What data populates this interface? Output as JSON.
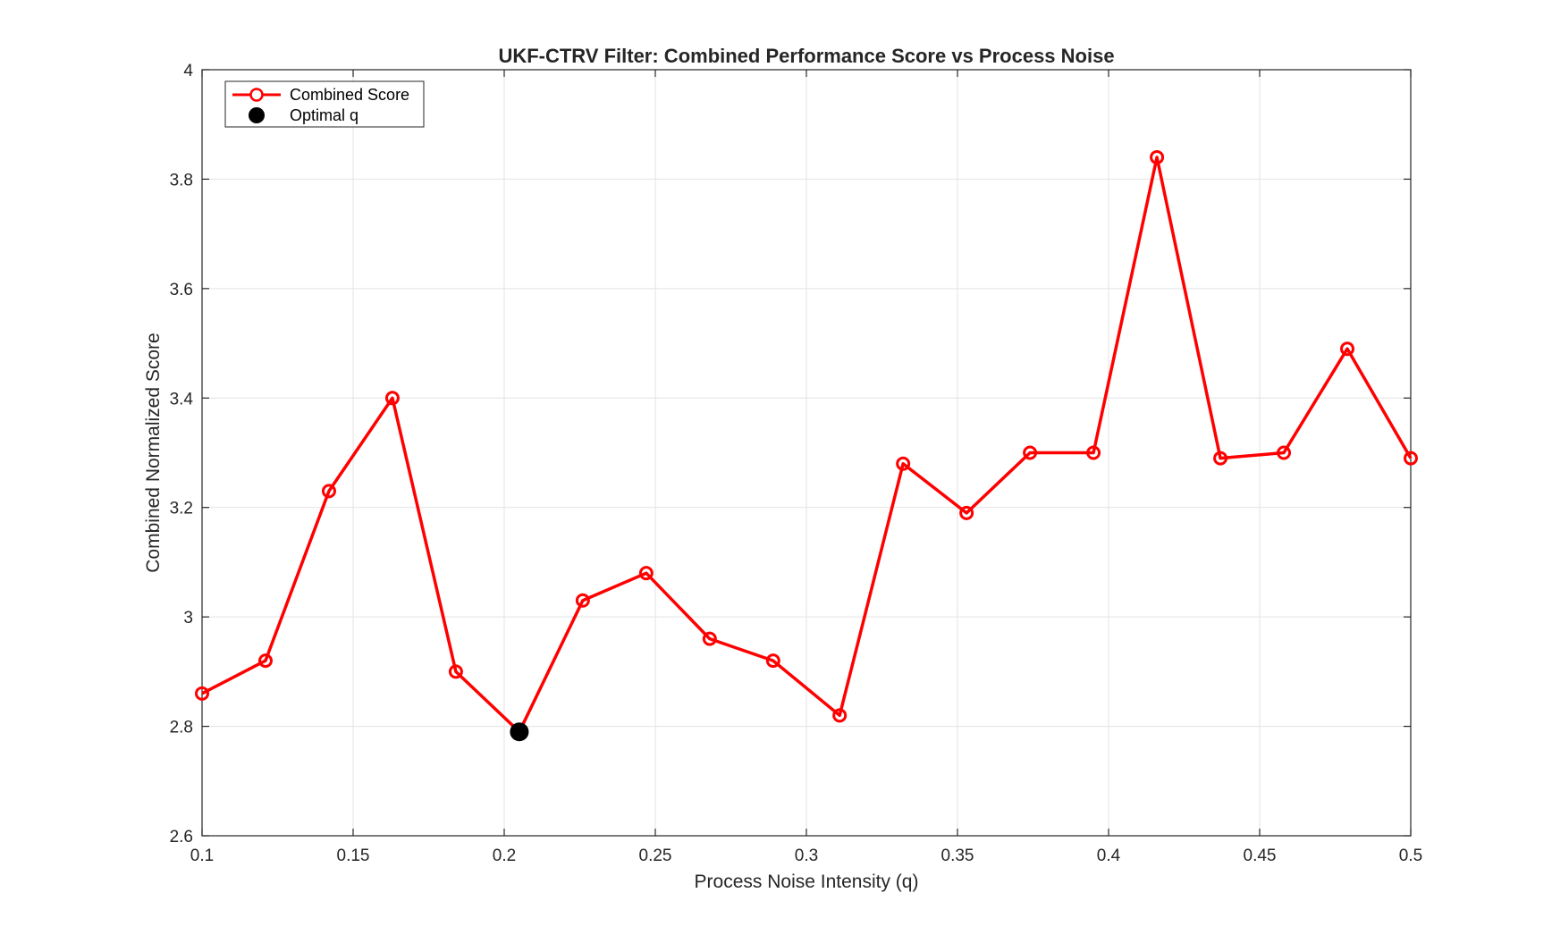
{
  "chart_data": {
    "type": "line",
    "title": "UKF-CTRV Filter: Combined Performance Score vs Process Noise",
    "xlabel": "Process Noise Intensity (q)",
    "ylabel": "Combined Normalized Score",
    "xlim": [
      0.1,
      0.5
    ],
    "ylim": [
      2.6,
      4.0
    ],
    "x_ticks": [
      "0.1",
      "0.15",
      "0.2",
      "0.25",
      "0.3",
      "0.35",
      "0.4",
      "0.45",
      "0.5"
    ],
    "y_ticks": [
      "2.6",
      "2.8",
      "3",
      "3.2",
      "3.4",
      "3.6",
      "3.8",
      "4"
    ],
    "grid": true,
    "legend_position": "top-left",
    "series": [
      {
        "name": "Combined Score",
        "color": "#ff0000",
        "marker": "open-circle",
        "x": [
          0.1,
          0.121,
          0.142,
          0.163,
          0.184,
          0.205,
          0.226,
          0.247,
          0.268,
          0.289,
          0.311,
          0.332,
          0.353,
          0.374,
          0.395,
          0.416,
          0.437,
          0.458,
          0.479,
          0.5
        ],
        "y": [
          2.86,
          2.92,
          3.23,
          3.4,
          2.9,
          2.79,
          3.03,
          3.08,
          2.96,
          2.92,
          2.82,
          3.28,
          3.19,
          3.3,
          3.3,
          3.84,
          3.29,
          3.3,
          3.49,
          3.29
        ]
      },
      {
        "name": "Optimal q",
        "color": "#000000",
        "marker": "filled-circle",
        "x": [
          0.205
        ],
        "y": [
          2.79
        ]
      }
    ]
  }
}
